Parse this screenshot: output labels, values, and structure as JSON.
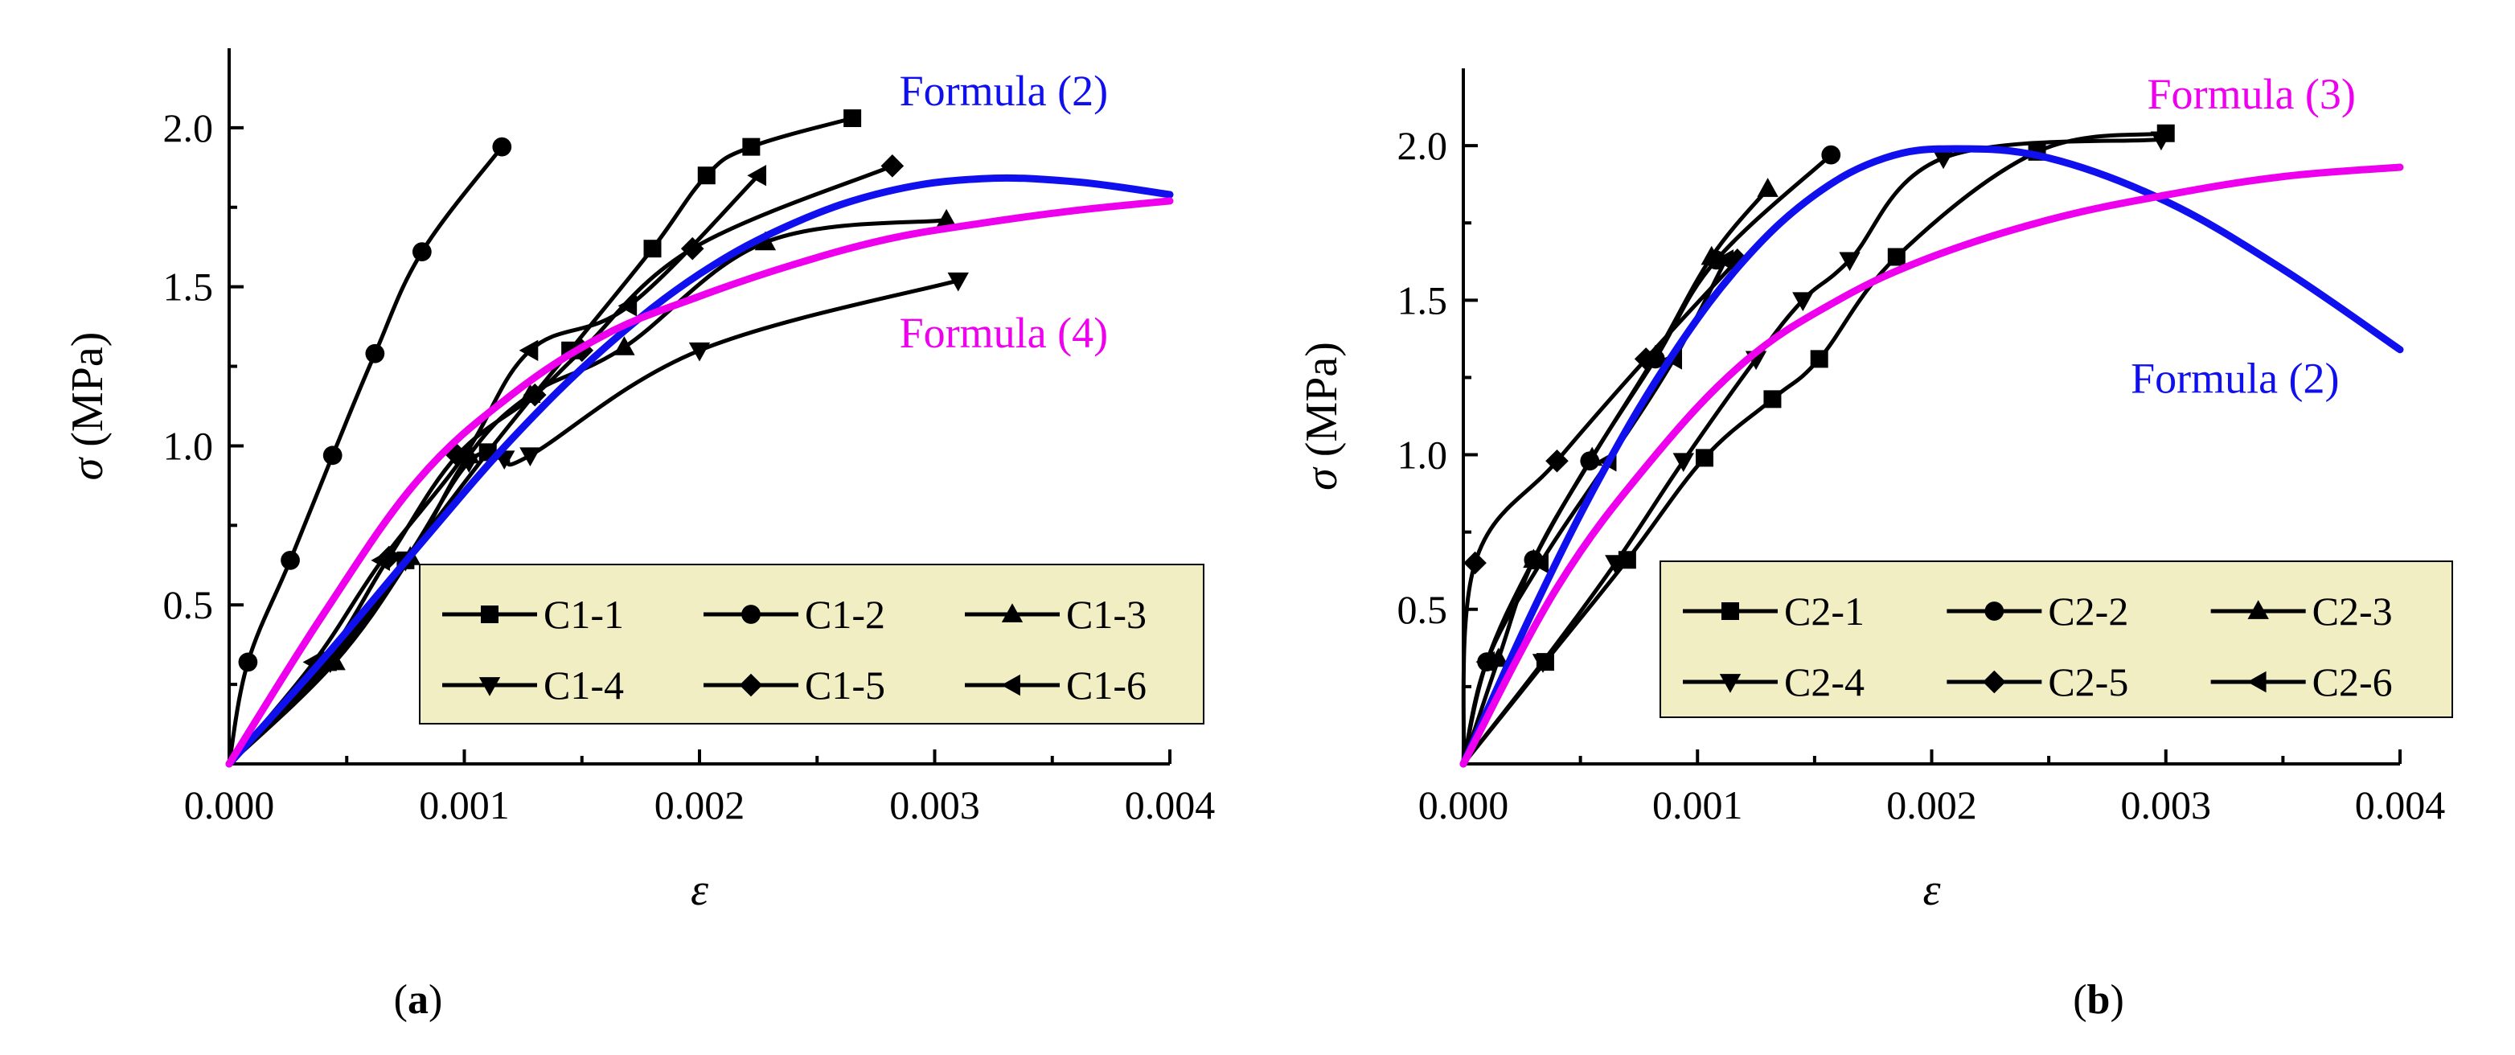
{
  "chart_data": [
    {
      "type": "line",
      "panel_label": "(a)",
      "panel_letter": "a",
      "xlabel": "ε",
      "ylabel": "σ (MPa)",
      "xlim": [
        0,
        0.004
      ],
      "ylim": [
        0,
        2.25
      ],
      "xticks": [
        0,
        0.001,
        0.002,
        0.003,
        0.004
      ],
      "xtick_labels": [
        "0.000",
        "0.001",
        "0.002",
        "0.003",
        "0.004"
      ],
      "yticks": [
        0.5,
        1.0,
        1.5,
        2.0
      ],
      "ytick_labels": [
        "0.5",
        "1.0",
        "1.5",
        "2.0"
      ],
      "legend_position": "lower-right",
      "legend_background": "#f2eec4",
      "series": [
        {
          "name": "C1-1",
          "marker": "square",
          "color": "#000000",
          "points": [
            [
              0,
              0
            ],
            [
              0.00042,
              0.32
            ],
            [
              0.00075,
              0.64
            ],
            [
              0.0011,
              0.98
            ],
            [
              0.00145,
              1.3
            ],
            [
              0.0018,
              1.62
            ],
            [
              0.00203,
              1.85
            ],
            [
              0.00222,
              1.94
            ],
            [
              0.00265,
              2.03
            ]
          ]
        },
        {
          "name": "C1-2",
          "marker": "circle",
          "color": "#000000",
          "points": [
            [
              0,
              0
            ],
            [
              8e-05,
              0.32
            ],
            [
              0.00026,
              0.64
            ],
            [
              0.00044,
              0.97
            ],
            [
              0.00062,
              1.29
            ],
            [
              0.00082,
              1.61
            ],
            [
              0.00116,
              1.94
            ]
          ]
        },
        {
          "name": "C1-3",
          "marker": "triangle-up",
          "color": "#000000",
          "points": [
            [
              0,
              0
            ],
            [
              0.00045,
              0.32
            ],
            [
              0.00077,
              0.65
            ],
            [
              0.00102,
              0.97
            ],
            [
              0.00128,
              1.16
            ],
            [
              0.00168,
              1.31
            ],
            [
              0.00228,
              1.64
            ],
            [
              0.00305,
              1.71
            ]
          ]
        },
        {
          "name": "C1-4",
          "marker": "triangle-down",
          "color": "#000000",
          "points": [
            [
              0,
              0
            ],
            [
              0.00043,
              0.32
            ],
            [
              0.00075,
              0.64
            ],
            [
              0.00102,
              0.95
            ],
            [
              0.00117,
              0.96
            ],
            [
              0.00128,
              0.97
            ],
            [
              0.002,
              1.3
            ],
            [
              0.0031,
              1.52
            ]
          ]
        },
        {
          "name": "C1-5",
          "marker": "diamond",
          "color": "#000000",
          "points": [
            [
              0,
              0
            ],
            [
              0.0004,
              0.32
            ],
            [
              0.00068,
              0.65
            ],
            [
              0.00097,
              0.97
            ],
            [
              0.0013,
              1.16
            ],
            [
              0.0015,
              1.3
            ],
            [
              0.00197,
              1.62
            ],
            [
              0.00282,
              1.88
            ]
          ]
        },
        {
          "name": "C1-6",
          "marker": "triangle-left",
          "color": "#000000",
          "points": [
            [
              0,
              0
            ],
            [
              0.00036,
              0.32
            ],
            [
              0.00065,
              0.64
            ],
            [
              0.001,
              0.97
            ],
            [
              0.00128,
              1.3
            ],
            [
              0.0017,
              1.44
            ],
            [
              0.00225,
              1.85
            ]
          ]
        },
        {
          "name": "Formula (2)",
          "marker": "none",
          "color": "#1010ee",
          "points": [
            [
              0,
              0
            ],
            [
              0.0004,
              0.33
            ],
            [
              0.0008,
              0.68
            ],
            [
              0.0012,
              1.02
            ],
            [
              0.0016,
              1.31
            ],
            [
              0.002,
              1.54
            ],
            [
              0.0024,
              1.7
            ],
            [
              0.0028,
              1.8
            ],
            [
              0.0032,
              1.84
            ],
            [
              0.0036,
              1.83
            ],
            [
              0.004,
              1.79
            ]
          ]
        },
        {
          "name": "Formula (4)",
          "marker": "none",
          "color": "#ee00ee",
          "points": [
            [
              0,
              0
            ],
            [
              0.0004,
              0.47
            ],
            [
              0.0008,
              0.89
            ],
            [
              0.0012,
              1.16
            ],
            [
              0.0016,
              1.35
            ],
            [
              0.002,
              1.47
            ],
            [
              0.0024,
              1.57
            ],
            [
              0.0028,
              1.65
            ],
            [
              0.0032,
              1.7
            ],
            [
              0.0036,
              1.74
            ],
            [
              0.004,
              1.77
            ]
          ]
        }
      ],
      "annotations": [
        {
          "text": "Formula (2)",
          "color": "#1010ee",
          "x": 0.00285,
          "y": 2.07
        },
        {
          "text": "Formula (4)",
          "color": "#ee00ee",
          "x": 0.00285,
          "y": 1.31
        }
      ]
    },
    {
      "type": "line",
      "panel_label": "(b)",
      "panel_letter": "b",
      "xlabel": "ε",
      "ylabel": "σ (MPa)",
      "xlim": [
        0,
        0.004
      ],
      "ylim": [
        0,
        2.25
      ],
      "xticks": [
        0,
        0.001,
        0.002,
        0.003,
        0.004
      ],
      "xtick_labels": [
        "0.000",
        "0.001",
        "0.002",
        "0.003",
        "0.004"
      ],
      "yticks": [
        0.5,
        1.0,
        1.5,
        2.0
      ],
      "ytick_labels": [
        "0.5",
        "1.0",
        "1.5",
        "2.0"
      ],
      "legend_position": "lower-right",
      "legend_background": "#f2eec4",
      "series": [
        {
          "name": "C2-1",
          "marker": "square",
          "color": "#000000",
          "points": [
            [
              0,
              0
            ],
            [
              0.00035,
              0.33
            ],
            [
              0.0007,
              0.66
            ],
            [
              0.00103,
              0.99
            ],
            [
              0.00132,
              1.18
            ],
            [
              0.00152,
              1.31
            ],
            [
              0.00185,
              1.64
            ],
            [
              0.00245,
              1.98
            ],
            [
              0.003,
              2.04
            ]
          ]
        },
        {
          "name": "C2-2",
          "marker": "circle",
          "color": "#000000",
          "points": [
            [
              0,
              0
            ],
            [
              0.0001,
              0.33
            ],
            [
              0.0003,
              0.66
            ],
            [
              0.00054,
              0.98
            ],
            [
              0.00082,
              1.31
            ],
            [
              0.00108,
              1.63
            ],
            [
              0.00157,
              1.97
            ]
          ]
        },
        {
          "name": "C2-3",
          "marker": "triangle-up",
          "color": "#000000",
          "points": [
            [
              0,
              0
            ],
            [
              0.00015,
              0.34
            ],
            [
              0.0003,
              0.66
            ],
            [
              0.00055,
              0.99
            ],
            [
              0.00082,
              1.32
            ],
            [
              0.00106,
              1.64
            ],
            [
              0.0013,
              1.86
            ]
          ]
        },
        {
          "name": "C2-4",
          "marker": "triangle-down",
          "color": "#000000",
          "points": [
            [
              0,
              0
            ],
            [
              0.00034,
              0.33
            ],
            [
              0.00065,
              0.65
            ],
            [
              0.00094,
              0.98
            ],
            [
              0.00125,
              1.31
            ],
            [
              0.00145,
              1.5
            ],
            [
              0.00165,
              1.63
            ],
            [
              0.00205,
              1.96
            ],
            [
              0.00298,
              2.02
            ]
          ]
        },
        {
          "name": "C2-5",
          "marker": "diamond",
          "color": "#000000",
          "points": [
            [
              0,
              0
            ],
            [
              5e-05,
              0.65
            ],
            [
              0.0004,
              0.98
            ],
            [
              0.00078,
              1.31
            ],
            [
              0.00117,
              1.63
            ]
          ]
        },
        {
          "name": "C2-6",
          "marker": "triangle-left",
          "color": "#000000",
          "points": [
            [
              0,
              0
            ],
            [
              0.0001,
              0.33
            ],
            [
              0.00033,
              0.65
            ],
            [
              0.00062,
              0.98
            ],
            [
              0.0009,
              1.31
            ],
            [
              0.00112,
              1.63
            ]
          ]
        },
        {
          "name": "Formula (2)",
          "marker": "none",
          "color": "#1010ee",
          "points": [
            [
              0,
              0
            ],
            [
              0.0003,
              0.5
            ],
            [
              0.0006,
              0.95
            ],
            [
              0.0009,
              1.33
            ],
            [
              0.0012,
              1.63
            ],
            [
              0.0015,
              1.84
            ],
            [
              0.0018,
              1.96
            ],
            [
              0.0021,
              1.99
            ],
            [
              0.0025,
              1.96
            ],
            [
              0.003,
              1.82
            ],
            [
              0.0035,
              1.6
            ],
            [
              0.004,
              1.34
            ]
          ]
        },
        {
          "name": "Formula (3)",
          "marker": "none",
          "color": "#ee00ee",
          "points": [
            [
              0,
              0
            ],
            [
              0.0004,
              0.57
            ],
            [
              0.0008,
              0.98
            ],
            [
              0.0012,
              1.3
            ],
            [
              0.0016,
              1.5
            ],
            [
              0.002,
              1.64
            ],
            [
              0.0025,
              1.76
            ],
            [
              0.003,
              1.84
            ],
            [
              0.0035,
              1.9
            ],
            [
              0.004,
              1.93
            ]
          ]
        }
      ],
      "annotations": [
        {
          "text": "Formula (3)",
          "color": "#ee00ee",
          "x": 0.00292,
          "y": 2.12
        },
        {
          "text": "Formula (2)",
          "color": "#1010ee",
          "x": 0.00285,
          "y": 1.2
        }
      ]
    }
  ]
}
